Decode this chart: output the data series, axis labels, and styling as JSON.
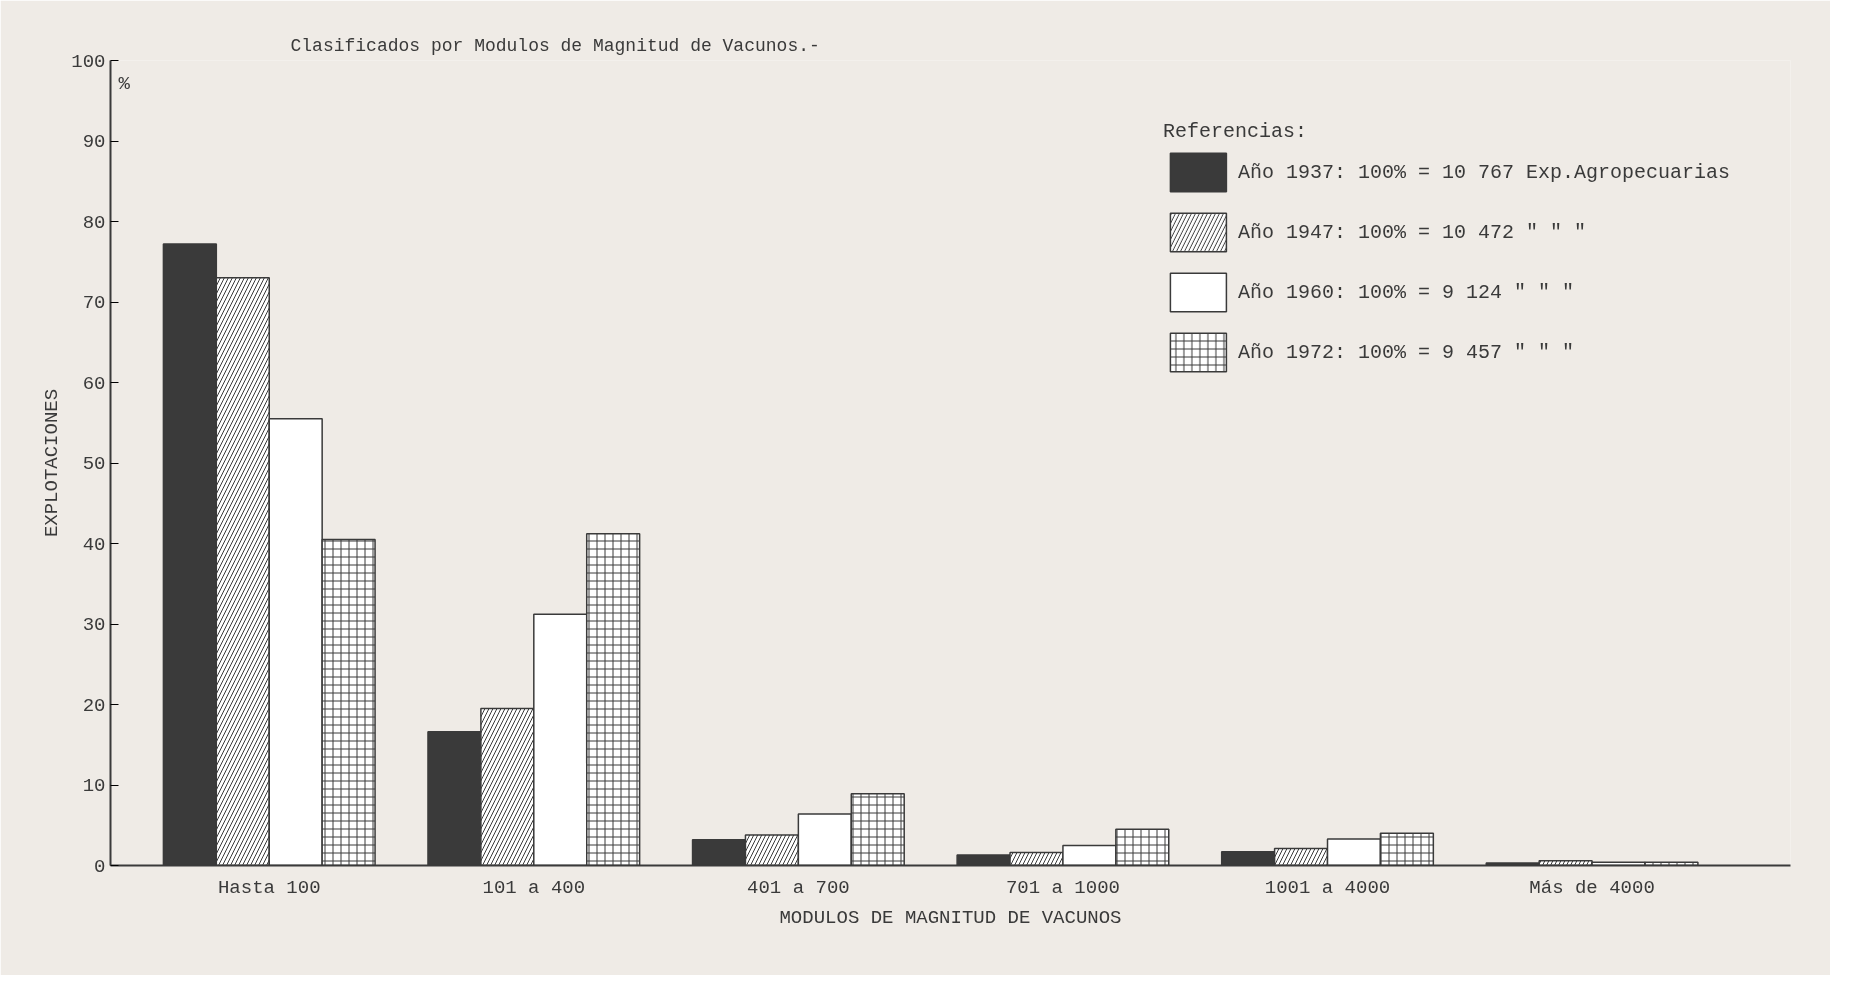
{
  "chart_data": {
    "type": "bar",
    "title": "Clasificados por Modulos de Magnitud de Vacunos.-",
    "xlabel": "MODULOS DE MAGNITUD DE VACUNOS",
    "ylabel": "EXPLOTACIONES",
    "legend_title": "Referencias:",
    "annotations": [
      "%"
    ],
    "categories": [
      "Hasta 100",
      "101 a 400",
      "401 a 700",
      "701 a 1000",
      "1001 a 4000",
      "Más de 4000"
    ],
    "series": [
      {
        "name": "Año 1937: 100% = 10 767 Exp.Agropecuarias",
        "color": "#3a3a3a",
        "values": [
          77.2,
          16.6,
          3.2,
          1.3,
          1.7,
          0.3
        ]
      },
      {
        "name": "Año 1947: 100% = 10 472 \" \" \"",
        "color": "#ffffff",
        "values": [
          73,
          19.5,
          3.8,
          1.6,
          2.1,
          0.6
        ]
      },
      {
        "name": "Año 1960: 100% = 9 124 \" \" \"",
        "color": "#ffffff",
        "values": [
          55.5,
          31.2,
          6.4,
          2.5,
          3.3,
          0.4
        ]
      },
      {
        "name": "Año 1972: 100% = 9 457 \" \" \"",
        "color": "#ffffff",
        "values": [
          40.5,
          41.2,
          8.9,
          4.5,
          4.0,
          0.4
        ]
      }
    ],
    "ylim": [
      0,
      100
    ],
    "yticks": [
      0,
      10,
      20,
      30,
      40,
      50,
      60,
      70,
      80,
      90,
      100
    ],
    "grid": false,
    "legend": "top right"
  }
}
